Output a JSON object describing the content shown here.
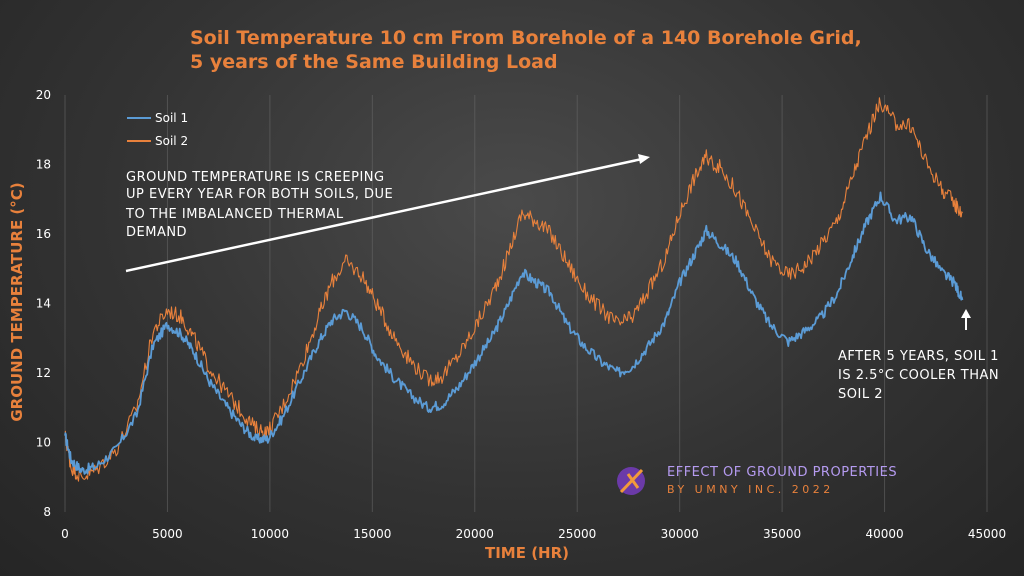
{
  "chart_data": {
    "type": "line",
    "title_lines": [
      "Soil Temperature 10 cm From Borehole of a 140 Borehole Grid,",
      "5 years of the Same Building Load"
    ],
    "xlabel": "TIME (HR)",
    "ylabel": "GROUND TEMPERATURE (°C)",
    "xlim": [
      0,
      45000
    ],
    "ylim": [
      8,
      20
    ],
    "x_ticks": [
      "0",
      "5000",
      "10000",
      "15000",
      "20000",
      "25000",
      "30000",
      "35000",
      "40000",
      "45000"
    ],
    "y_ticks": [
      "8",
      "10",
      "12",
      "14",
      "16",
      "18",
      "20"
    ],
    "grid": "vertical",
    "legend_position": "top-left",
    "series": [
      {
        "name": "Soil 1",
        "color": "#5b9bd5",
        "x": [
          0,
          300,
          800,
          1500,
          2500,
          3500,
          4300,
          5000,
          5700,
          6300,
          7000,
          7800,
          8600,
          9300,
          9900,
          10600,
          11500,
          12300,
          13000,
          13700,
          14500,
          15200,
          16000,
          16800,
          17700,
          18400,
          19200,
          20000,
          20800,
          21500,
          22300,
          23000,
          23700,
          24500,
          25300,
          26200,
          27000,
          27700,
          28500,
          29300,
          30000,
          30700,
          31300,
          32000,
          32800,
          33600,
          34400,
          35300,
          36100,
          36900,
          37700,
          38400,
          39100,
          39800,
          40500,
          41300,
          42000,
          42800,
          43400,
          43800
        ],
        "values": [
          10.2,
          9.5,
          9.2,
          9.3,
          9.8,
          10.8,
          12.8,
          13.4,
          13.1,
          12.6,
          11.8,
          11.1,
          10.5,
          10.1,
          10.1,
          10.7,
          11.8,
          12.8,
          13.5,
          13.8,
          13.3,
          12.5,
          11.9,
          11.4,
          11.0,
          11.1,
          11.6,
          12.3,
          13.0,
          13.8,
          14.9,
          14.6,
          14.3,
          13.4,
          12.8,
          12.3,
          12.0,
          12.2,
          12.8,
          13.5,
          14.6,
          15.4,
          16.1,
          15.7,
          15.2,
          14.2,
          13.4,
          12.9,
          13.2,
          13.6,
          14.3,
          15.3,
          16.3,
          17.1,
          16.4,
          16.5,
          15.6,
          14.9,
          14.6,
          14.1
        ]
      },
      {
        "name": "Soil 2",
        "color": "#e8813c",
        "x": [
          0,
          300,
          800,
          1500,
          2500,
          3500,
          4300,
          5000,
          5700,
          6300,
          7000,
          7800,
          8600,
          9300,
          9900,
          10600,
          11500,
          12300,
          13000,
          13700,
          14500,
          15200,
          16000,
          16800,
          17700,
          18400,
          19200,
          20000,
          20800,
          21500,
          22300,
          23000,
          23700,
          24500,
          25300,
          26200,
          27000,
          27700,
          28500,
          29300,
          30000,
          30700,
          31300,
          32000,
          32800,
          33600,
          34400,
          35300,
          36100,
          36900,
          37700,
          38400,
          39100,
          39800,
          40500,
          41300,
          42000,
          42800,
          43400,
          43800
        ],
        "values": [
          10.2,
          9.3,
          9.0,
          9.2,
          9.8,
          11.0,
          13.2,
          13.8,
          13.6,
          13.0,
          12.2,
          11.5,
          10.9,
          10.4,
          10.3,
          11.0,
          12.2,
          13.5,
          14.6,
          15.2,
          14.8,
          14.0,
          13.1,
          12.4,
          11.8,
          11.9,
          12.5,
          13.3,
          14.2,
          15.2,
          16.6,
          16.4,
          16.0,
          15.2,
          14.4,
          13.8,
          13.4,
          13.6,
          14.4,
          15.3,
          16.6,
          17.6,
          18.2,
          17.9,
          17.2,
          16.2,
          15.3,
          14.8,
          15.1,
          15.7,
          16.4,
          17.6,
          18.8,
          19.8,
          19.2,
          19.1,
          18.1,
          17.3,
          16.9,
          16.6
        ]
      }
    ],
    "annotations": {
      "trend_note": [
        "GROUND TEMPERATURE IS CREEPING",
        "UP EVERY YEAR FOR BOTH SOILS, DUE",
        "TO THE IMBALANCED THERMAL",
        "DEMAND"
      ],
      "end_note": [
        "AFTER 5 YEARS, SOIL 1",
        "IS 2.5°C COOLER THAN",
        "SOIL 2"
      ]
    }
  },
  "branding": {
    "line1": "EFFECT OF GROUND PROPERTIES",
    "line2": "BY UMNY INC. 2022"
  }
}
